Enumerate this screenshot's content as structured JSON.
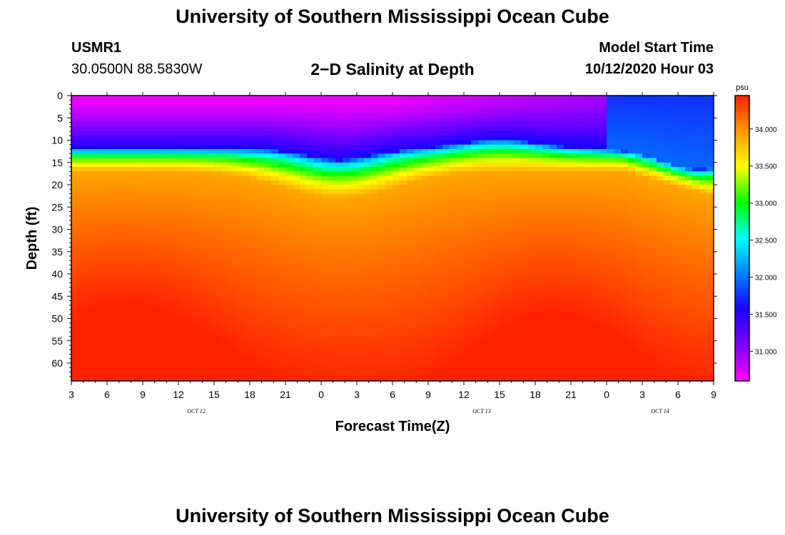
{
  "header": {
    "title": "University of Southern Mississippi Ocean Cube",
    "station_id": "USMR1",
    "station_coords": "30.0500N 88.5830W",
    "plot_title": "2−D Salinity at Depth",
    "model_start_label": "Model Start Time",
    "model_start_value": "10/12/2020 Hour 03"
  },
  "footer": {
    "title": "University of Southern Mississippi Ocean Cube"
  },
  "chart_data": {
    "type": "heatmap",
    "title": "2−D Salinity at Depth",
    "xlabel": "Forecast Time(Z)",
    "ylabel": "Depth (ft)",
    "x_ticks": [
      "3",
      "6",
      "9",
      "12",
      "15",
      "18",
      "21",
      "0",
      "3",
      "6",
      "9",
      "12",
      "15",
      "18",
      "21",
      "0",
      "3",
      "6",
      "9"
    ],
    "date_labels": [
      {
        "label": "OCT 12",
        "after_tick": 4
      },
      {
        "label": "OCT 13",
        "after_tick": 12
      },
      {
        "label": "OCT 14",
        "after_tick": 17
      }
    ],
    "y_ticks": [
      0,
      5,
      10,
      15,
      20,
      25,
      30,
      35,
      40,
      45,
      50,
      55,
      60
    ],
    "ylim": [
      0,
      64
    ],
    "colorbar": {
      "unit": "psu",
      "range": [
        30.6,
        34.45
      ],
      "ticks": [
        "31.000",
        "31.500",
        "32.000",
        "32.500",
        "33.000",
        "33.500",
        "34.000"
      ],
      "colormap": [
        "#ff00ff",
        "#7f00ff",
        "#1a00ff",
        "#0080ff",
        "#00ffff",
        "#00ff00",
        "#ffff00",
        "#ff9900",
        "#ff2200"
      ]
    },
    "grid": false,
    "legend_placement": "right colorbar"
  }
}
